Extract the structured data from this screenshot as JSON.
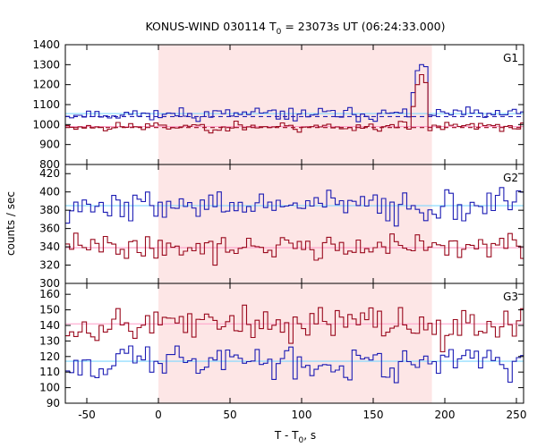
{
  "chart_data": {
    "type": "line",
    "title_main": "KONUS-WIND 030114 T",
    "title_sub": "0",
    "title_rest": " = 23073s UT (06:24:33.000)",
    "ylabel": "counts / sec",
    "xlabel_main": "T - T",
    "xlabel_sub": "0",
    "xlabel_rest": ", s",
    "xlim": [
      -65,
      255
    ],
    "xticks": [
      -50,
      0,
      50,
      100,
      150,
      200,
      250
    ],
    "xtick_labels": [
      "-50",
      "0",
      "50",
      "100",
      "150",
      "200",
      "250"
    ],
    "shaded_interval": [
      0,
      191
    ],
    "panels": [
      {
        "name": "G1",
        "ylim": [
          800,
          1400
        ],
        "yticks": [
          800,
          900,
          1000,
          1100,
          1200,
          1300,
          1400
        ],
        "ytick_labels": [
          "800",
          "900",
          "1000",
          "1100",
          "1200",
          "1300",
          "1400"
        ],
        "series": [
          {
            "mean": 1052,
            "noise": 22,
            "seed": 11,
            "color": "#1c1cb4",
            "peak": {
              "start": 176,
              "end": 188,
              "values": [
                1160,
                1270,
                1300,
                1290,
                1250,
                1150
              ]
            }
          },
          {
            "mean": 990,
            "noise": 18,
            "seed": 23,
            "color": "#9a0a1e",
            "peak": {
              "start": 176,
              "end": 188,
              "values": [
                1090,
                1200,
                1250,
                1210,
                1120,
                1040
              ]
            }
          }
        ],
        "fits": [
          {
            "y": 1055,
            "color": "#7fd8ff",
            "dashed": false
          },
          {
            "y": 990,
            "color": "#ff9ec8",
            "dashed": false
          },
          {
            "y": 1040,
            "color": "#1c1cb4",
            "dashed": true
          },
          {
            "y": 985,
            "color": "#9a0a1e",
            "dashed": true
          }
        ]
      },
      {
        "name": "G2",
        "ylim": [
          300,
          430
        ],
        "yticks": [
          300,
          320,
          340,
          360,
          380,
          400,
          420
        ],
        "ytick_labels": [
          "300",
          "320",
          "340",
          "360",
          "380",
          "400",
          "420"
        ],
        "series": [
          {
            "mean": 385,
            "noise": 12,
            "seed": 37,
            "color": "#1c1cb4"
          },
          {
            "mean": 340,
            "noise": 10,
            "seed": 41,
            "color": "#9a0a1e"
          }
        ],
        "fits": [
          {
            "y": 385,
            "color": "#7fd8ff",
            "dashed": false
          },
          {
            "y": 339,
            "color": "#ff9ec8",
            "dashed": false
          }
        ]
      },
      {
        "name": "G3",
        "ylim": [
          90,
          167
        ],
        "yticks": [
          90,
          100,
          110,
          120,
          130,
          140,
          150,
          160
        ],
        "ytick_labels": [
          "90",
          "100",
          "110",
          "120",
          "130",
          "140",
          "150",
          "160"
        ],
        "series": [
          {
            "mean": 141,
            "noise": 8,
            "seed": 53,
            "color": "#9a0a1e"
          },
          {
            "mean": 117,
            "noise": 8,
            "seed": 67,
            "color": "#1c1cb4"
          }
        ],
        "fits": [
          {
            "y": 141,
            "color": "#ff9ec8",
            "dashed": false
          },
          {
            "y": 117,
            "color": "#7fd8ff",
            "dashed": false
          }
        ]
      }
    ],
    "bin_width": 2.944,
    "colors": {
      "shade": "#fde6e6",
      "axis": "#000000"
    }
  }
}
